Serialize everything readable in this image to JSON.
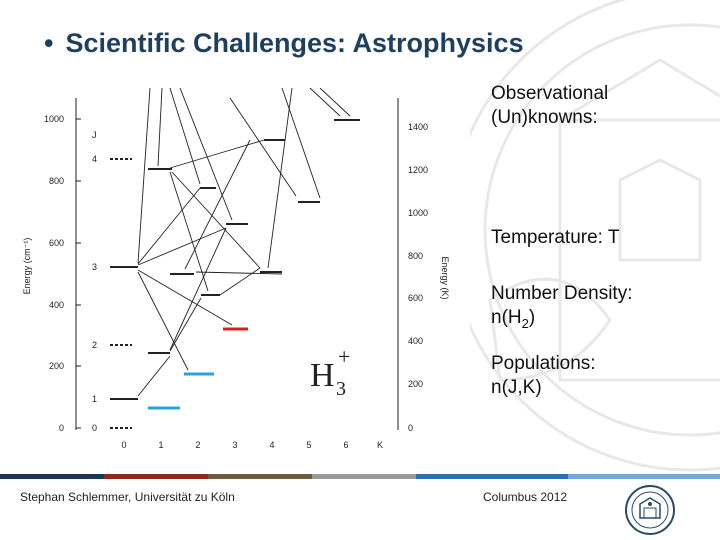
{
  "slide": {
    "title": "Scientific Challenges: Astrophysics",
    "bullet": "•"
  },
  "figure": {
    "y_left_label": "Energy (cm⁻¹)",
    "y_left_ticks": [
      "1000",
      "800",
      "600",
      "400",
      "200",
      "0"
    ],
    "y_right_label": "Energy (K)",
    "y_right_ticks": [
      "1400",
      "1200",
      "1000",
      "800",
      "600",
      "400",
      "200",
      "0"
    ],
    "x_ticks": [
      "0",
      "1",
      "2",
      "3",
      "4",
      "5",
      "6",
      "K"
    ],
    "j_header": "J",
    "j_labels": [
      "4",
      "3",
      "2",
      "1",
      "0"
    ],
    "molecule": "H",
    "molecule_sub": "3",
    "molecule_sup": "+",
    "colors": {
      "red_level": "#d42020",
      "cyan_level": "#2aa3d8",
      "axis": "#222222"
    }
  },
  "right_panel": {
    "heading_line1": "Observational",
    "heading_line2": "(Un)knowns:",
    "temperature": "Temperature: T",
    "density_line1": "Number Density:",
    "density_line2_prefix": "n(H",
    "density_line2_sub": "2",
    "density_line2_suffix": ")",
    "populations_line1": "Populations:",
    "populations_line2": "n(J,K)"
  },
  "footer": {
    "left_text": "Stephan Schlemmer, Universität zu Köln",
    "mid_text": "Columbus 2012",
    "bar_colors": [
      "#1d3557",
      "#8a2b1e",
      "#6f5a3a",
      "#9a9a9a",
      "#2f6fb1",
      "#7aa7d4"
    ]
  }
}
